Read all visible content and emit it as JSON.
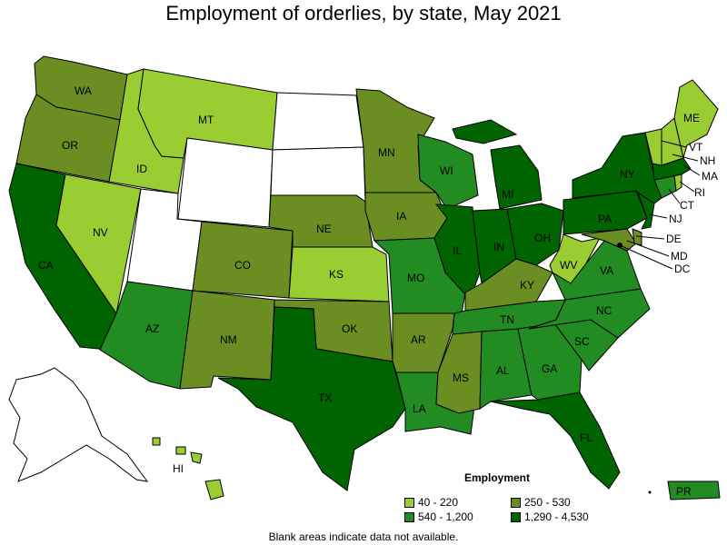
{
  "title": "Employment of orderlies, by state, May 2021",
  "colors": {
    "c1": "#9acd32",
    "c2": "#6b8e23",
    "c3": "#228b22",
    "c4": "#006400",
    "na": "#ffffff"
  },
  "legend": {
    "title": "Employment",
    "items": [
      {
        "label": "40 - 220",
        "color": "#9acd32"
      },
      {
        "label": "250 - 530",
        "color": "#6b8e23"
      },
      {
        "label": "540 - 1,200",
        "color": "#228b22"
      },
      {
        "label": "1,290 - 4,530",
        "color": "#006400"
      }
    ]
  },
  "footnote": "Blank areas indicate data not available.",
  "states": {
    "WA": "WA",
    "OR": "OR",
    "CA": "CA",
    "ID": "ID",
    "NV": "NV",
    "MT": "MT",
    "AZ": "AZ",
    "CO": "CO",
    "NM": "NM",
    "NE": "NE",
    "KS": "KS",
    "OK": "OK",
    "TX": "TX",
    "MN": "MN",
    "IA": "IA",
    "MO": "MO",
    "AR": "AR",
    "LA": "LA",
    "WI": "WI",
    "IL": "IL",
    "MI": "MI",
    "IN": "IN",
    "OH": "OH",
    "KY": "KY",
    "TN": "TN",
    "MS": "MS",
    "AL": "AL",
    "GA": "GA",
    "FL": "FL",
    "SC": "SC",
    "NC": "NC",
    "VA": "VA",
    "WV": "WV",
    "PA": "PA",
    "NY": "NY",
    "ME": "ME",
    "VT": "VT",
    "NH": "NH",
    "MA": "MA",
    "RI": "RI",
    "CT": "CT",
    "NJ": "NJ",
    "DE": "DE",
    "MD": "MD",
    "DC": "DC",
    "HI": "HI",
    "PR": "PR"
  }
}
